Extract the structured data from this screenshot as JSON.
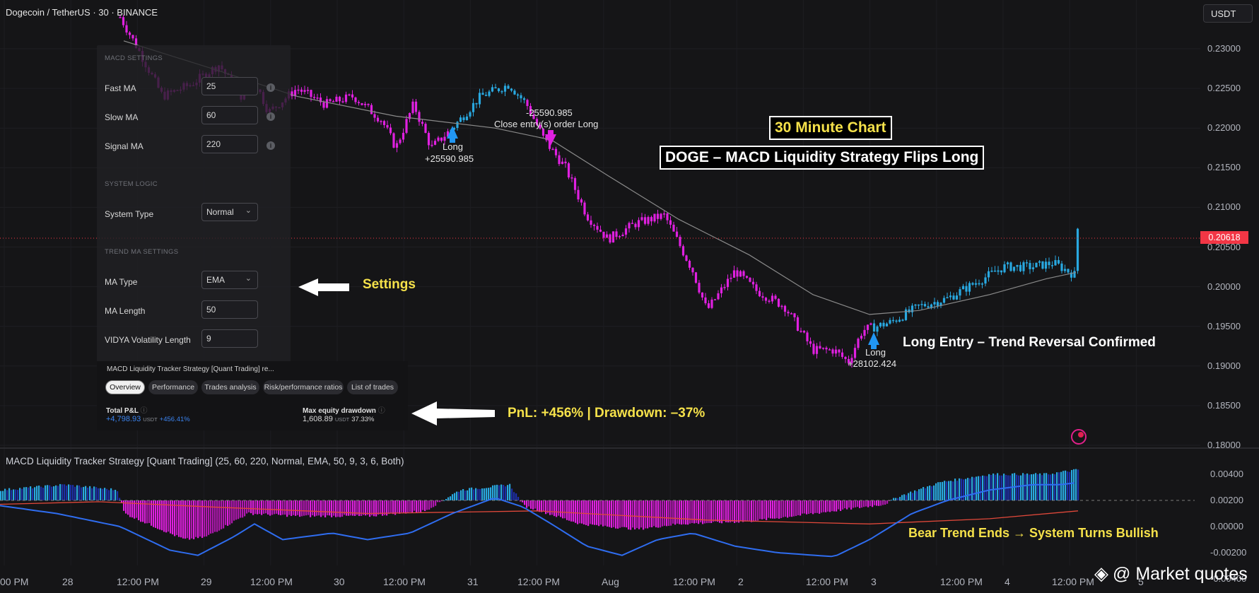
{
  "chart": {
    "symbol_title": "Dogecoin / TetherUS · 30 · BINANCE",
    "currency": "USDT",
    "last_price": "0.20618",
    "price_ticks": [
      "0.23000",
      "0.22500",
      "0.22000",
      "0.21500",
      "0.21000",
      "0.20500",
      "0.20000",
      "0.19500",
      "0.19000",
      "0.18500",
      "0.18000"
    ],
    "indicator_ticks": [
      "0.00400",
      "0.00200",
      "0.00000",
      "-0.00200",
      "-0.00400"
    ],
    "x_ticks": [
      "00 PM",
      "28",
      "12:00 PM",
      "29",
      "12:00 PM",
      "30",
      "12:00 PM",
      "31",
      "12:00 PM",
      "Aug",
      "12:00 PM",
      "2",
      "12:00 PM",
      "3",
      "12:00 PM",
      "4",
      "12:00 PM",
      "5"
    ]
  },
  "settings_panel": {
    "macd_header": "MACD SETTINGS",
    "fast_ma": {
      "label": "Fast MA",
      "value": "25"
    },
    "slow_ma": {
      "label": "Slow MA",
      "value": "60"
    },
    "signal_ma": {
      "label": "Signal MA",
      "value": "220"
    },
    "system_header": "SYSTEM LOGIC",
    "system_type": {
      "label": "System Type",
      "value": "Normal"
    },
    "trend_header": "TREND MA SETTINGS",
    "ma_type": {
      "label": "MA Type",
      "value": "EMA"
    },
    "ma_length": {
      "label": "MA Length",
      "value": "50"
    },
    "vidya": {
      "label": "VIDYA Volatility Length",
      "value": "9"
    }
  },
  "tester": {
    "strategy_name": "MACD Liquidity Tracker Strategy [Quant Trading] re...",
    "tabs": [
      "Overview",
      "Performance",
      "Trades analysis",
      "Risk/performance ratios",
      "List of trades"
    ],
    "pnl": {
      "label": "Total P&L",
      "value": "+4,798.93",
      "unit": "USDT",
      "pct": "+456.41%"
    },
    "drawdown": {
      "label": "Max equity drawdown",
      "value": "1,608.89",
      "unit": "USDT",
      "pct": "37.33%"
    }
  },
  "annotations": {
    "title_top": "30 Minute Chart",
    "title_main": "DOGE – MACD Liquidity Strategy Flips Long",
    "settings": "Settings",
    "pnl": "PnL: +456% | Drawdown: –37%",
    "long_entry": "Long Entry – Trend Reversal Confirmed",
    "bear_end": "Bear Trend Ends → System Turns Bullish"
  },
  "trades": {
    "long1_label": "Long",
    "long1_qty": "+25590.985",
    "close_qty": "-25590.985",
    "close_label": "Close entry(s) order Long",
    "long2_label": "Long",
    "long2_qty": "+28102.424"
  },
  "indicator": {
    "title": "MACD Liquidity Tracker Strategy [Quant Trading] (25, 60, 220, Normal, EMA, 50, 9, 3, 6, Both)"
  },
  "watermark": "@ Market quotes",
  "colors": {
    "bull": "#29a8e0",
    "bear": "#e020e0",
    "hist_bull_dark": "#1c2fa8",
    "macd_line": "#2f6df0",
    "signal_line": "#e0483a",
    "annotation_yellow": "#f5e14a"
  }
}
